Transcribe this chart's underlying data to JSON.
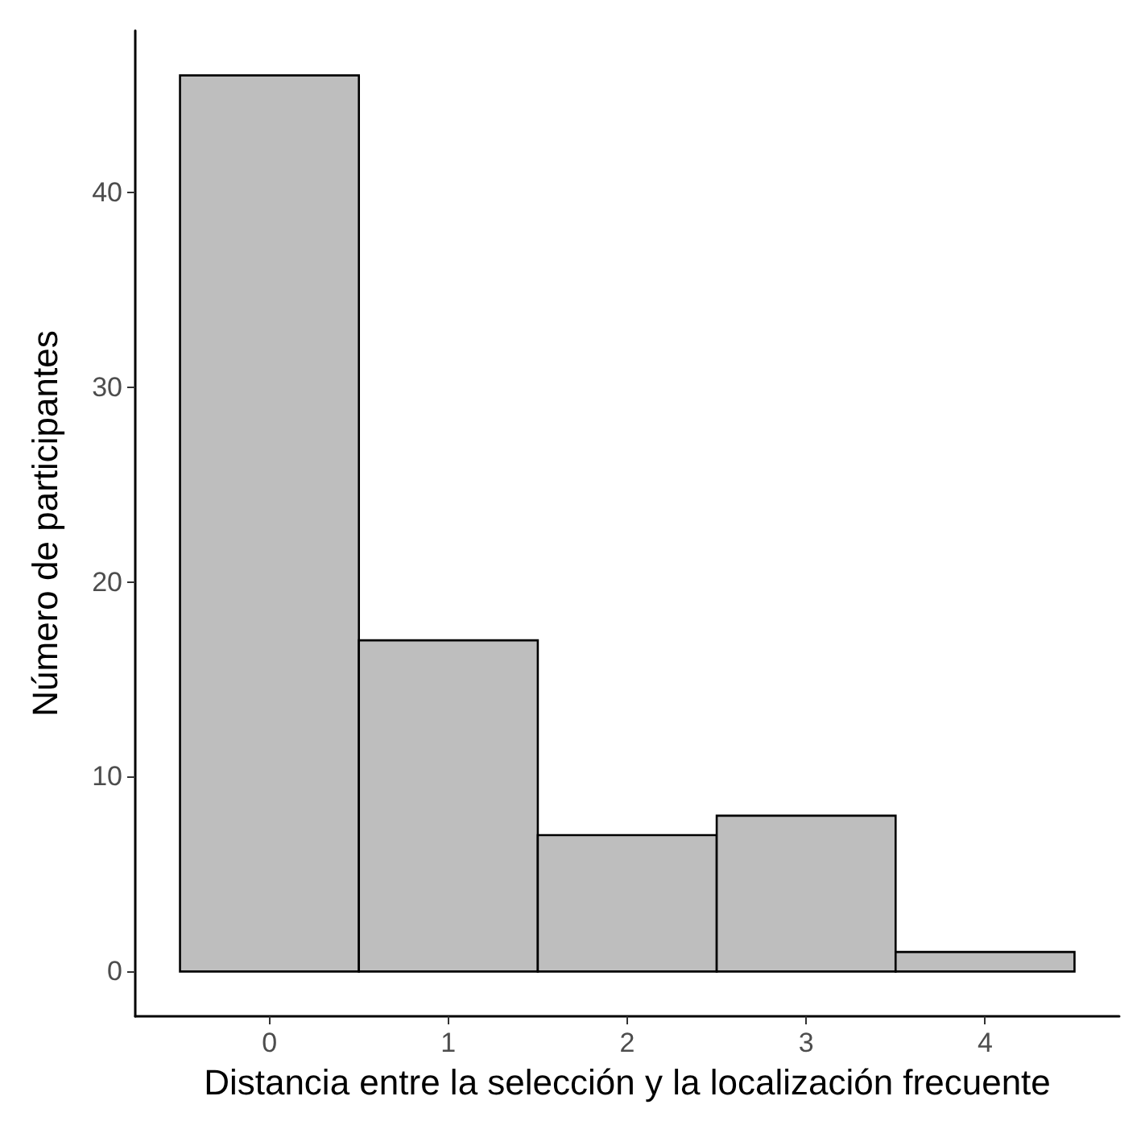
{
  "chart_data": {
    "type": "histogram",
    "xlabel": "Distancia entre la selección y la localización frecuente",
    "ylabel": "Número de participantes",
    "bins": [
      -0.5,
      0.5,
      1.5,
      2.5,
      3.5,
      4.5
    ],
    "values": [
      46,
      17,
      7,
      8,
      1
    ],
    "color": "#bebebe",
    "xlim": [
      -0.75,
      4.75
    ],
    "xticks": [
      0,
      1,
      2,
      3,
      4
    ],
    "ylim": [
      -2.3,
      48.3
    ],
    "yticks": [
      0,
      10,
      20,
      30,
      40
    ]
  }
}
